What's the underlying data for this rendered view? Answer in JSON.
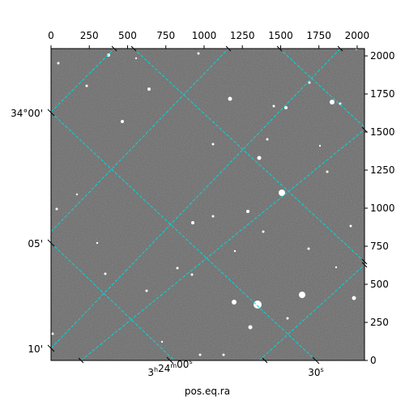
{
  "chart_data": {
    "type": "image",
    "title": "",
    "xlabel": "pos.eq.ra",
    "ylabel": "",
    "pixel_axes": {
      "x_ticks": [
        "0",
        "250",
        "500",
        "750",
        "1000",
        "1250",
        "1500",
        "1750",
        "2000"
      ],
      "y_ticks": [
        "0",
        "250",
        "500",
        "750",
        "1000",
        "1250",
        "1500",
        "1750",
        "2000"
      ],
      "xlim": [
        0,
        2048
      ],
      "ylim": [
        0,
        2048
      ]
    },
    "world_axes": {
      "ra_ticks": [
        {
          "h": "3",
          "m": "24",
          "s": "00",
          "suffix": ""
        },
        {
          "h": "",
          "m": "",
          "s": "30",
          "suffix": ""
        }
      ],
      "dec_ticks": [
        {
          "label": "34°00'"
        },
        {
          "label": "05'"
        },
        {
          "label": "10'"
        }
      ]
    },
    "grid": true,
    "grid_color": "#00d8d8",
    "image_background": "#6b6b6b"
  }
}
